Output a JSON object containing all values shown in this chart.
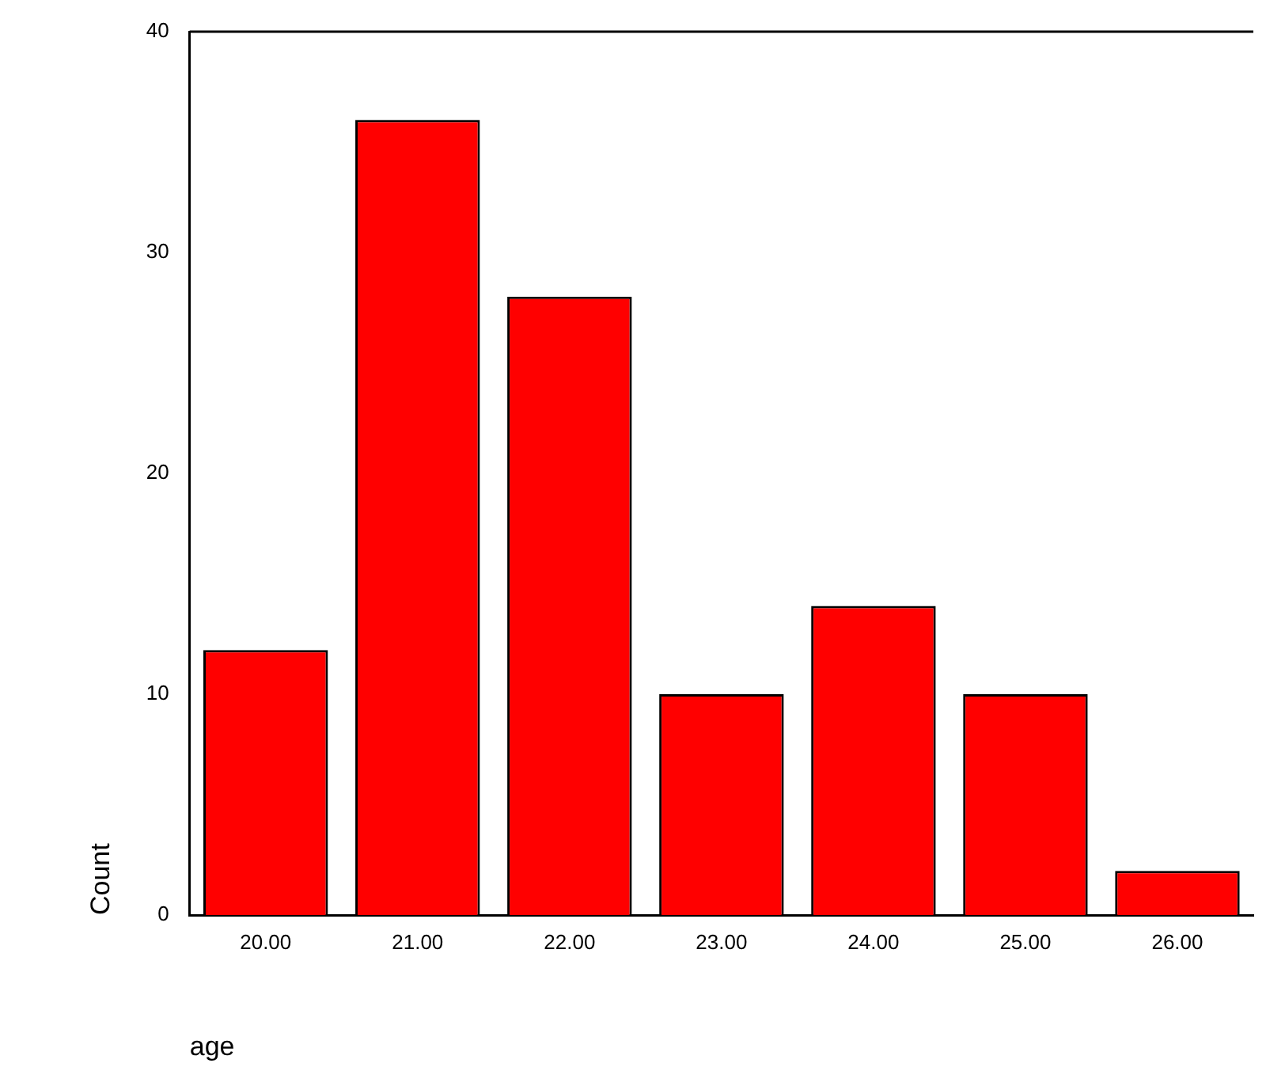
{
  "chart_data": {
    "type": "bar",
    "xlabel": "age",
    "ylabel": "Count",
    "categories": [
      "20.00",
      "21.00",
      "22.00",
      "23.00",
      "24.00",
      "25.00",
      "26.00"
    ],
    "values": [
      12,
      36,
      28,
      10,
      14,
      10,
      2
    ],
    "color": "#ff0000",
    "ylim": [
      0,
      40
    ],
    "yticks": [
      0,
      10,
      20,
      30,
      40
    ],
    "grid": false,
    "legend": false
  }
}
